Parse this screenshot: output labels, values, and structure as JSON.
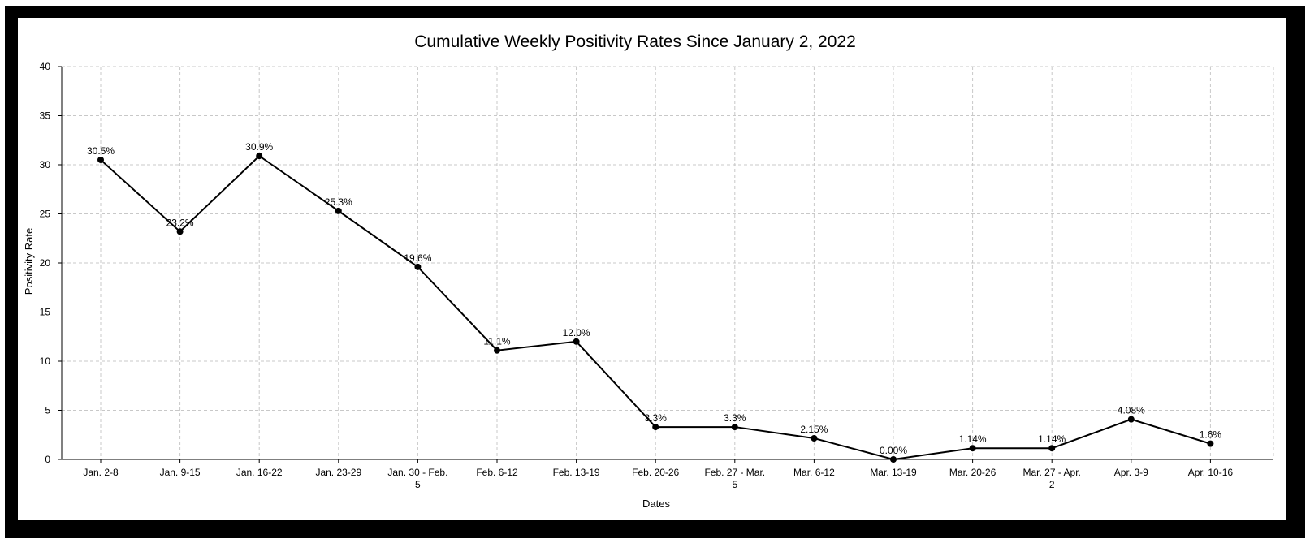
{
  "chart_data": {
    "type": "line",
    "title": "Cumulative Weekly Positivity Rates Since January 2, 2022",
    "xlabel": "Dates",
    "ylabel": "Positivity Rate",
    "ylim": [
      0,
      40
    ],
    "yticks": [
      0,
      5,
      10,
      15,
      20,
      25,
      30,
      35,
      40
    ],
    "grid": true,
    "categories": [
      "Jan. 2-8",
      "Jan. 9-15",
      "Jan. 16-22",
      "Jan. 23-29",
      "Jan. 30 - Feb. 5",
      "Feb. 6-12",
      "Feb. 13-19",
      "Feb. 20-26",
      "Feb. 27 - Mar. 5",
      "Mar. 6-12",
      "Mar. 13-19",
      "Mar. 20-26",
      "Mar. 27 - Apr. 2",
      "Apr. 3-9",
      "Apr. 10-16"
    ],
    "values": [
      30.5,
      23.2,
      30.9,
      25.3,
      19.6,
      11.1,
      12.0,
      3.3,
      3.3,
      2.15,
      0.0,
      1.14,
      1.14,
      4.08,
      1.6
    ],
    "data_labels": [
      "30.5%",
      "23.2%",
      "30.9%",
      "25.3%",
      "19.6%",
      "11.1%",
      "12.0%",
      "3.3%",
      "3.3%",
      "2.15%",
      "0.00%",
      "1.14%",
      "1.14%",
      "4.08%",
      "1.6%"
    ],
    "colors": {
      "line": "#000000",
      "grid": "#c8c8c8",
      "frame": "#000000"
    }
  }
}
